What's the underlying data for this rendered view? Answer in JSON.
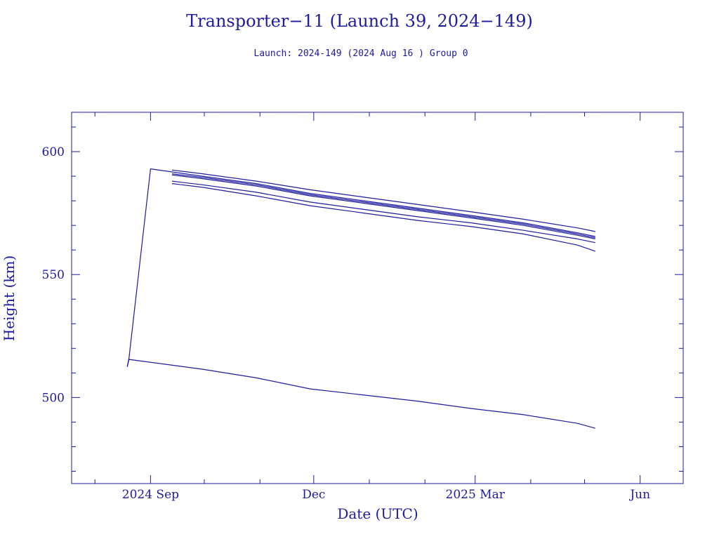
{
  "chart_data": {
    "type": "line",
    "title": "Transporter−11 (Launch 39, 2024−149)",
    "subtitle": "Launch: 2024-149  (2024 Aug 16 )  Group 0",
    "xlabel": "Date (UTC)",
    "ylabel": "Height (km)",
    "xlim": [
      "2024-07-19",
      "2025-06-25"
    ],
    "ylim": [
      465,
      616
    ],
    "x_ticks": [
      {
        "label": "2024 Sep",
        "date": "2024-09-01"
      },
      {
        "label": "Dec",
        "date": "2024-12-01"
      },
      {
        "label": "2025 Mar",
        "date": "2025-03-01"
      },
      {
        "label": "Jun",
        "date": "2025-06-01"
      }
    ],
    "y_ticks": [
      500,
      550,
      600
    ],
    "grid": false,
    "color": "#1c1c9c",
    "series": [
      {
        "x": [
          "2024-08-19",
          "2024-08-20",
          "2024-09-01",
          "2024-09-30",
          "2024-10-30",
          "2024-11-29",
          "2024-12-29",
          "2025-01-28",
          "2025-02-27",
          "2025-03-28",
          "2025-04-27",
          "2025-05-07"
        ],
        "y": [
          512.5,
          516,
          593,
          590,
          587,
          583,
          580,
          577,
          574,
          571,
          567,
          565.5
        ]
      },
      {
        "x": [
          "2024-09-13",
          "2024-09-30",
          "2024-10-30",
          "2024-11-29",
          "2024-12-29",
          "2025-01-28",
          "2025-02-27",
          "2025-03-28",
          "2025-04-27",
          "2025-05-07"
        ],
        "y": [
          592.5,
          591,
          588,
          584.5,
          581.5,
          578.5,
          575.5,
          572.5,
          569,
          567.5
        ]
      },
      {
        "x": [
          "2024-09-13",
          "2024-09-30",
          "2024-10-30",
          "2024-11-29",
          "2024-12-29",
          "2025-01-28",
          "2025-02-27",
          "2025-03-28",
          "2025-04-27",
          "2025-05-07"
        ],
        "y": [
          591,
          589.5,
          586.5,
          582.5,
          579.5,
          576.5,
          573.5,
          570.5,
          566.5,
          565
        ]
      },
      {
        "x": [
          "2024-09-13",
          "2024-09-30",
          "2024-10-30",
          "2024-11-29",
          "2024-12-29",
          "2025-01-28",
          "2025-02-27",
          "2025-03-28",
          "2025-04-27",
          "2025-05-07"
        ],
        "y": [
          590.5,
          589,
          586,
          582,
          579,
          576,
          573,
          570,
          566,
          564.5
        ]
      },
      {
        "x": [
          "2024-09-13",
          "2024-09-30",
          "2024-10-30",
          "2024-11-29",
          "2024-12-29",
          "2025-01-28",
          "2025-02-27",
          "2025-03-28",
          "2025-04-27",
          "2025-05-07"
        ],
        "y": [
          588,
          586.5,
          583.5,
          579.5,
          576.5,
          573.5,
          571,
          568,
          564.5,
          563
        ]
      },
      {
        "x": [
          "2024-09-13",
          "2024-09-30",
          "2024-10-30",
          "2024-11-29",
          "2024-12-29",
          "2025-01-28",
          "2025-02-27",
          "2025-03-28",
          "2025-04-27",
          "2025-05-07"
        ],
        "y": [
          587,
          585.5,
          582,
          578,
          575,
          572,
          569.5,
          566.5,
          562,
          559.5
        ]
      },
      {
        "x": [
          "2024-08-19",
          "2024-08-20",
          "2024-09-30",
          "2024-10-30",
          "2024-11-29",
          "2024-12-29",
          "2025-01-28",
          "2025-02-27",
          "2025-03-28",
          "2025-04-27",
          "2025-05-07"
        ],
        "y": [
          512.5,
          515.5,
          511.5,
          508,
          503.5,
          501,
          498.5,
          495.5,
          493,
          489.5,
          487.5
        ]
      }
    ]
  }
}
